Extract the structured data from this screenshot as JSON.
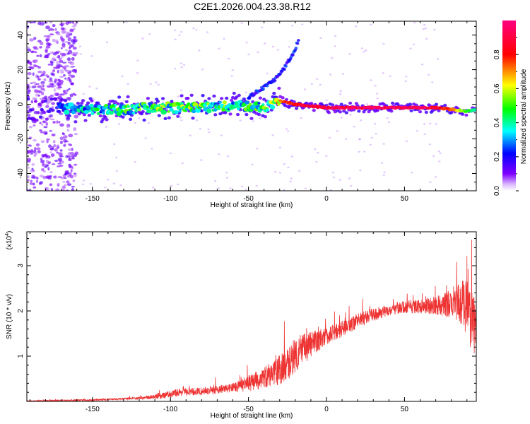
{
  "title": "C2E1.2026.004.23.38.R12",
  "chart_data": [
    {
      "type": "heatmap",
      "xlabel": "Height of straight line (km)",
      "ylabel": "Frequency (Hz)",
      "xlim": [
        -192,
        96
      ],
      "ylim": [
        -50,
        48
      ],
      "x_ticks": [
        -150,
        -100,
        -50,
        0,
        50
      ],
      "y_ticks": [
        -40,
        -20,
        0,
        20,
        40
      ],
      "colorbar": {
        "label": "Normalized spectral amplitude",
        "range": [
          0,
          1
        ],
        "ticks": [
          0.0,
          0.2,
          0.4,
          0.6,
          0.8
        ],
        "tick_labels": [
          "0.0",
          "0.2",
          "0.4",
          "0.6",
          "0.8"
        ],
        "colormap": [
          "#ffffff",
          "#7f00ff",
          "#0000ff",
          "#00ffff",
          "#00ff00",
          "#ffff00",
          "#ff0000",
          "#ff0080"
        ]
      },
      "main_trace": {
        "x": [
          -190,
          -170,
          -150,
          -130,
          -110,
          -90,
          -70,
          -50,
          -40,
          -30,
          -25,
          -20,
          -10,
          0,
          20,
          40,
          60,
          70,
          80,
          90,
          96
        ],
        "y": [
          -3,
          -2,
          -3,
          -3,
          -2,
          -2,
          -1,
          -1,
          -2,
          2,
          1,
          0,
          -1,
          -2,
          -2,
          -2,
          -2,
          -2,
          -3,
          -4,
          -3
        ],
        "amplitude": [
          0.25,
          0.3,
          0.4,
          0.45,
          0.5,
          0.55,
          0.5,
          0.45,
          0.5,
          0.7,
          0.8,
          0.85,
          0.9,
          0.92,
          0.95,
          0.95,
          0.95,
          0.9,
          0.75,
          0.5,
          0.4
        ]
      },
      "upper_branch": {
        "x": [
          -50,
          -45,
          -40,
          -35,
          -30,
          -27,
          -25,
          -22,
          -20,
          -18
        ],
        "y": [
          4,
          7,
          10,
          13,
          17,
          21,
          24,
          28,
          32,
          37
        ]
      }
    },
    {
      "type": "line",
      "xlabel": "Height of straight line (km)",
      "ylabel": "SNR (10 * v/v)",
      "y_multiplier": "(x10",
      "y_multiplier_exp": "4",
      "y_multiplier_close": ")",
      "xlim": [
        -192,
        96
      ],
      "ylim": [
        0,
        3.75
      ],
      "x_ticks": [
        -150,
        -100,
        -50,
        0,
        50
      ],
      "y_ticks": [
        1,
        2,
        3
      ],
      "line_color": "#ee3333",
      "envelope": {
        "x": [
          -192,
          -150,
          -120,
          -105,
          -95,
          -80,
          -60,
          -45,
          -35,
          -25,
          -20,
          -10,
          0,
          10,
          20,
          30,
          40,
          50,
          60,
          70,
          80,
          85,
          90,
          94,
          96
        ],
        "y": [
          0.01,
          0.03,
          0.07,
          0.12,
          0.2,
          0.22,
          0.3,
          0.45,
          0.6,
          0.8,
          1.05,
          1.25,
          1.45,
          1.6,
          1.78,
          1.92,
          2.02,
          2.08,
          2.1,
          2.12,
          2.15,
          2.2,
          2.1,
          1.8,
          1.3
        ]
      },
      "noise_scale": {
        "x": [
          -192,
          -120,
          -100,
          -60,
          -40,
          -20,
          0,
          40,
          60,
          75,
          85,
          92,
          96
        ],
        "y": [
          0.008,
          0.025,
          0.08,
          0.1,
          0.25,
          0.4,
          0.2,
          0.12,
          0.15,
          0.25,
          0.45,
          0.75,
          0.6
        ]
      }
    }
  ]
}
